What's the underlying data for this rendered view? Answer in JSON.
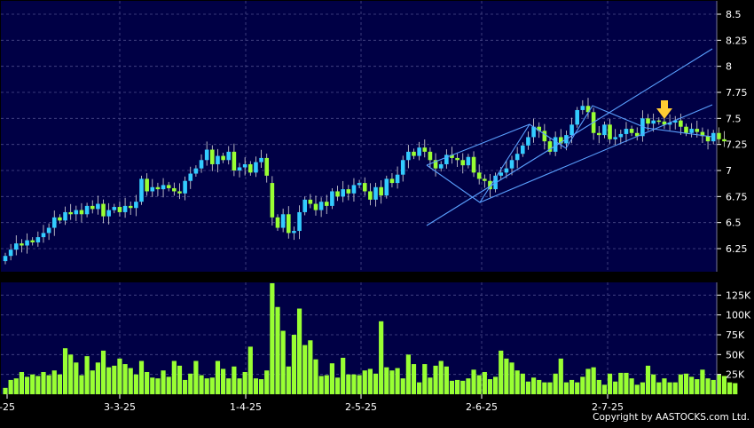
{
  "colors": {
    "background": "#000000",
    "panel": "#000045",
    "grid": "#4a4a8a",
    "candle_up": "#33ccff",
    "candle_down": "#99ff33",
    "volume_bar": "#99ff33",
    "channel_line": "#5aa0ff",
    "arrow": "#ffcc33",
    "text": "#ffffff"
  },
  "credit": "Copyright by AASTOCKS.com Ltd.",
  "chart_data": [
    {
      "type": "candlestick",
      "ylim": [
        6.05,
        8.55
      ],
      "y_ticks": [
        "8.5",
        "8.25",
        "8",
        "7.75",
        "7.5",
        "7.25",
        "7",
        "6.75",
        "6.5",
        "6.25"
      ],
      "y_tick_values": [
        8.5,
        8.25,
        8,
        7.75,
        7.5,
        7.25,
        7,
        6.75,
        6.5,
        6.25
      ],
      "x_ticks": [
        "-25",
        "3-3-25",
        "1-4-25",
        "2-5-25",
        "2-6-25",
        "2-7-25"
      ],
      "grid": true,
      "closes": [
        6.18,
        6.24,
        6.3,
        6.28,
        6.33,
        6.31,
        6.36,
        6.4,
        6.45,
        6.55,
        6.52,
        6.6,
        6.58,
        6.62,
        6.58,
        6.66,
        6.63,
        6.68,
        6.56,
        6.62,
        6.65,
        6.6,
        6.66,
        6.64,
        6.7,
        6.92,
        6.8,
        6.84,
        6.82,
        6.86,
        6.83,
        6.8,
        6.78,
        6.9,
        6.97,
        7.02,
        7.1,
        7.2,
        7.06,
        7.14,
        7.1,
        7.18,
        7.0,
        7.03,
        7.06,
        6.98,
        7.08,
        7.12,
        6.95,
        6.55,
        6.45,
        6.58,
        6.4,
        6.42,
        6.6,
        6.72,
        6.68,
        6.62,
        6.7,
        6.66,
        6.8,
        6.75,
        6.82,
        6.78,
        6.86,
        6.88,
        6.8,
        6.72,
        6.84,
        6.76,
        6.92,
        6.88,
        6.96,
        7.1,
        7.18,
        7.14,
        7.22,
        7.18,
        7.1,
        7.02,
        7.06,
        7.15,
        7.12,
        7.1,
        7.05,
        7.13,
        6.98,
        6.92,
        6.9,
        6.82,
        6.95,
        6.98,
        7.02,
        7.1,
        7.16,
        7.24,
        7.32,
        7.42,
        7.38,
        7.28,
        7.18,
        7.32,
        7.26,
        7.34,
        7.44,
        7.58,
        7.62,
        7.56,
        7.36,
        7.34,
        7.44,
        7.3,
        7.32,
        7.35,
        7.4,
        7.36,
        7.33,
        7.5,
        7.45,
        7.48,
        7.47,
        7.44,
        7.46,
        7.48,
        7.42,
        7.36,
        7.4,
        7.37,
        7.33,
        7.28,
        7.36,
        7.3,
        7.28
      ],
      "volumes": [
        8,
        18,
        20,
        28,
        22,
        25,
        23,
        28,
        24,
        30,
        25,
        58,
        50,
        40,
        24,
        48,
        30,
        40,
        55,
        34,
        36,
        45,
        38,
        33,
        25,
        42,
        28,
        21,
        20,
        30,
        22,
        42,
        36,
        18,
        26,
        42,
        24,
        20,
        21,
        42,
        32,
        20,
        35,
        20,
        28,
        60,
        20,
        19,
        30,
        140,
        110,
        80,
        35,
        75,
        108,
        62,
        68,
        44,
        23,
        24,
        39,
        21,
        46,
        25,
        25,
        24,
        30,
        32,
        26,
        92,
        34,
        30,
        33,
        20,
        50,
        38,
        15,
        38,
        21,
        36,
        42,
        35,
        17,
        18,
        17,
        20,
        31,
        24,
        28,
        19,
        22,
        55,
        45,
        40,
        30,
        26,
        16,
        21,
        18,
        15,
        15,
        26,
        45,
        15,
        18,
        15,
        22,
        32,
        34,
        18,
        12,
        26,
        16,
        27,
        27,
        20,
        12,
        15,
        36,
        25,
        15,
        20,
        15,
        15,
        25,
        26,
        22,
        19,
        31,
        20,
        18,
        25,
        23,
        15,
        14
      ],
      "volume_ylim": [
        0,
        150000
      ],
      "volume_ticks": [
        "125K",
        "100K",
        "75K",
        "50K",
        "25K"
      ],
      "volume_tick_values": [
        125000,
        100000,
        75000,
        50000,
        25000
      ]
    }
  ]
}
